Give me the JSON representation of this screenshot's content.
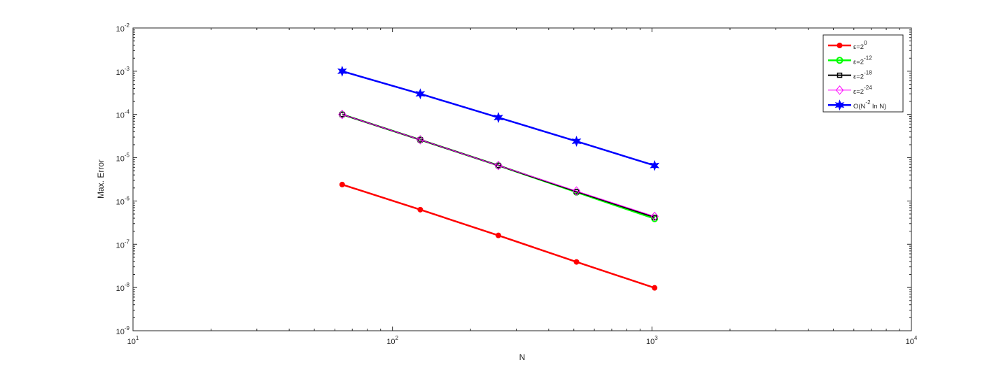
{
  "chart_data": {
    "type": "line",
    "xlabel": "N",
    "ylabel": "Max. Error",
    "xscale": "log",
    "yscale": "log",
    "xlim": [
      10,
      10000
    ],
    "ylim": [
      1e-09,
      0.01
    ],
    "xticks": [
      {
        "value": 10,
        "label": "10",
        "exponent": "1"
      },
      {
        "value": 100,
        "label": "10",
        "exponent": "2"
      },
      {
        "value": 1000,
        "label": "10",
        "exponent": "3"
      },
      {
        "value": 10000,
        "label": "10",
        "exponent": "4"
      }
    ],
    "yticks": [
      {
        "value": 1e-09,
        "label": "10",
        "exponent": "-9"
      },
      {
        "value": 1e-08,
        "label": "10",
        "exponent": "-8"
      },
      {
        "value": 1e-07,
        "label": "10",
        "exponent": "-7"
      },
      {
        "value": 1e-06,
        "label": "10",
        "exponent": "-6"
      },
      {
        "value": 1e-05,
        "label": "10",
        "exponent": "-5"
      },
      {
        "value": 0.0001,
        "label": "10",
        "exponent": "-4"
      },
      {
        "value": 0.001,
        "label": "10",
        "exponent": "-3"
      },
      {
        "value": 0.01,
        "label": "10",
        "exponent": "-2"
      }
    ],
    "minor_ticks": true,
    "legend": "upper right",
    "x": [
      64,
      128,
      256,
      512,
      1024
    ],
    "series": [
      {
        "name": [
          {
            "text": "ε=2"
          },
          {
            "sup": "0"
          }
        ],
        "color": "#ff0000",
        "marker": "dot",
        "width": 2.5,
        "values": [
          2.4e-06,
          6.3e-07,
          1.6e-07,
          3.9e-08,
          9.8e-09
        ]
      },
      {
        "name": [
          {
            "text": "ε=2"
          },
          {
            "sup": "-12"
          }
        ],
        "color": "#00ff00",
        "marker": "circle",
        "width": 2.5,
        "values": [
          0.0001,
          2.6e-05,
          6.6e-06,
          1.6e-06,
          3.9e-07
        ]
      },
      {
        "name": [
          {
            "text": "ε=2"
          },
          {
            "sup": "-18"
          }
        ],
        "color": "#000000",
        "marker": "square",
        "width": 2,
        "values": [
          0.0001,
          2.6e-05,
          6.6e-06,
          1.65e-06,
          4.2e-07
        ]
      },
      {
        "name": [
          {
            "text": "ε=2"
          },
          {
            "sup": "-24"
          }
        ],
        "color": "#ff00ff",
        "marker": "diamond",
        "width": 1,
        "values": [
          0.0001,
          2.6e-05,
          6.6e-06,
          1.7e-06,
          4.4e-07
        ]
      },
      {
        "name": [
          {
            "text": "O(N"
          },
          {
            "sup": "-2"
          },
          {
            "text": " ln N)"
          }
        ],
        "color": "#0000ff",
        "marker": "star",
        "width": 2.5,
        "values": [
          0.001,
          0.0003,
          8.5e-05,
          2.4e-05,
          6.6e-06
        ]
      }
    ]
  }
}
